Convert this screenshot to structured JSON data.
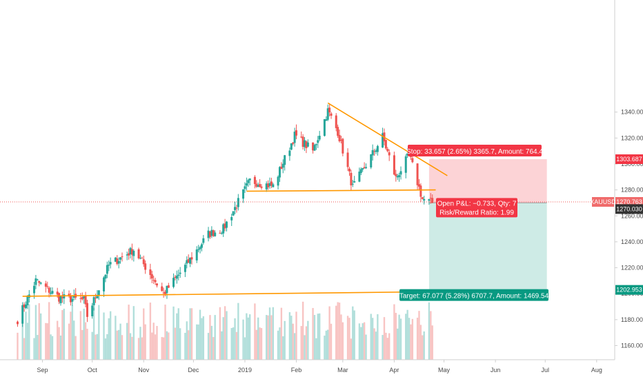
{
  "chart_data": {
    "type": "candlestick",
    "instrument": "XAUUSD",
    "y_axis": {
      "range": [
        1150,
        1352
      ],
      "ticks": [
        "1160.000",
        "1180.000",
        "1200.000",
        "1220.000",
        "1240.000",
        "1260.000",
        "1280.000",
        "1300.000",
        "1320.000",
        "1340.000"
      ],
      "grid": false
    },
    "x_axis": {
      "ticks": [
        "Sep",
        "Oct",
        "Nov",
        "Dec",
        "2019",
        "Feb",
        "Mar",
        "Apr",
        "May",
        "Jun",
        "Jul",
        "Aug"
      ],
      "grid": false
    },
    "price_anchors": [
      {
        "date": "2018-08-17",
        "price": 1180
      },
      {
        "date": "2018-08-28",
        "price": 1210
      },
      {
        "date": "2018-09-11",
        "price": 1197
      },
      {
        "date": "2018-09-26",
        "price": 1195
      },
      {
        "date": "2018-09-28",
        "price": 1183
      },
      {
        "date": "2018-10-11",
        "price": 1222
      },
      {
        "date": "2018-10-26",
        "price": 1234
      },
      {
        "date": "2018-11-13",
        "price": 1200
      },
      {
        "date": "2018-11-26",
        "price": 1221
      },
      {
        "date": "2018-12-10",
        "price": 1246
      },
      {
        "date": "2018-12-19",
        "price": 1250
      },
      {
        "date": "2019-01-04",
        "price": 1287
      },
      {
        "date": "2019-01-18",
        "price": 1283
      },
      {
        "date": "2019-01-31",
        "price": 1322
      },
      {
        "date": "2019-02-11",
        "price": 1310
      },
      {
        "date": "2019-02-20",
        "price": 1341
      },
      {
        "date": "2019-02-26",
        "price": 1325
      },
      {
        "date": "2019-03-07",
        "price": 1282
      },
      {
        "date": "2019-03-25",
        "price": 1321
      },
      {
        "date": "2019-04-02",
        "price": 1289
      },
      {
        "date": "2019-04-10",
        "price": 1307
      },
      {
        "date": "2019-04-18",
        "price": 1273
      },
      {
        "date": "2019-04-24",
        "price": 1270.03
      }
    ],
    "trendlines": [
      {
        "name": "descending-resistance",
        "color": "#ff9800",
        "points": [
          {
            "date": "2019-02-20",
            "price": 1347
          },
          {
            "date": "2019-05-03",
            "price": 1291
          }
        ]
      },
      {
        "name": "horizontal-neckline",
        "color": "#ff9800",
        "points": [
          {
            "date": "2019-01-02",
            "price": 1279
          },
          {
            "date": "2019-04-26",
            "price": 1280
          }
        ]
      },
      {
        "name": "long-term-support",
        "color": "#ff9800",
        "points": [
          {
            "date": "2018-08-20",
            "price": 1198
          },
          {
            "date": "2019-07-02",
            "price": 1202.5
          }
        ]
      }
    ],
    "position": {
      "direction": "short",
      "entry": 1270.03,
      "stop": 1303.687,
      "target": 1202.953,
      "start_date": "2019-04-22",
      "end_date": "2019-07-02",
      "stop_color": "#f23645",
      "target_color": "#089981"
    },
    "price_tags": [
      {
        "label": "XAUUSD",
        "value": "1270.763",
        "price": 1270.763,
        "color": "#f06b6b"
      },
      {
        "value": "1270.030",
        "price": 1270.03,
        "color": "#333333"
      },
      {
        "value": "1303.687",
        "price": 1303.687,
        "color": "#f23645"
      },
      {
        "value": "1202.953",
        "price": 1202.953,
        "color": "#089981"
      }
    ],
    "annotations": {
      "stop": "Stop: 33.657 (2.65%) 3365.7, Amount: 764.4",
      "pnl": "Open P&L: −0.733, Qty: 7",
      "ratio": "Risk/Reward Ratio: 1.99",
      "target": "Target: 67.077 (5.28%) 6707.7, Amount: 1469.54"
    },
    "colors": {
      "up": "#26a69a",
      "down": "#ef5350",
      "trendline": "#ff9800"
    }
  }
}
